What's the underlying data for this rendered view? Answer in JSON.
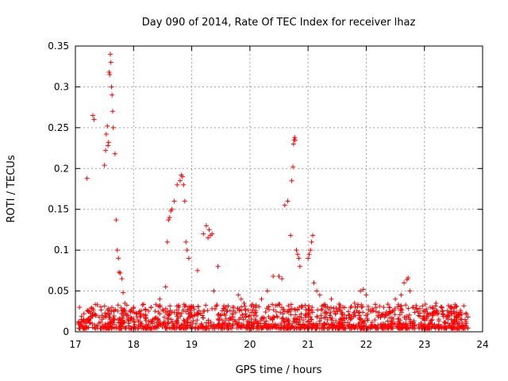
{
  "chart_data": {
    "type": "scatter",
    "title": "Day 090 of 2014, Rate Of TEC Index for receiver lhaz",
    "xlabel": "GPS time / hours",
    "ylabel": "ROTI / TECUs",
    "xlim": [
      17,
      24
    ],
    "ylim": [
      0,
      0.35
    ],
    "xticks": [
      17,
      18,
      19,
      20,
      21,
      22,
      23,
      24
    ],
    "xtick_labels": [
      "17",
      "18",
      "19",
      "20",
      "21",
      "22",
      "23",
      "24"
    ],
    "yticks": [
      0,
      0.05,
      0.1,
      0.15,
      0.2,
      0.25,
      0.3,
      0.35
    ],
    "ytick_labels": [
      "0",
      "0.05",
      "0.1",
      "0.15",
      "0.2",
      "0.25",
      "0.3",
      "0.35"
    ],
    "grid": true,
    "marker": "+",
    "color": "#ff0000",
    "series": [
      {
        "name": "ROTI",
        "x": [
          17.05,
          17.07,
          17.1,
          17.2,
          17.3,
          17.32,
          17.5,
          17.52,
          17.53,
          17.55,
          17.56,
          17.57,
          17.58,
          17.59,
          17.6,
          17.61,
          17.62,
          17.63,
          17.64,
          17.65,
          17.68,
          17.7,
          17.72,
          17.74,
          17.75,
          17.77,
          17.8,
          17.82,
          17.85,
          17.9,
          18.0,
          18.1,
          18.2,
          18.3,
          18.45,
          18.55,
          18.58,
          18.6,
          18.62,
          18.64,
          18.66,
          18.7,
          18.75,
          18.8,
          18.82,
          18.84,
          18.86,
          18.88,
          18.9,
          18.92,
          18.95,
          19.0,
          19.05,
          19.1,
          19.2,
          19.25,
          19.28,
          19.3,
          19.32,
          19.35,
          19.38,
          19.4,
          19.45,
          19.5,
          19.6,
          19.7,
          19.8,
          19.85,
          19.9,
          20.0,
          20.1,
          20.2,
          20.3,
          20.4,
          20.5,
          20.55,
          20.6,
          20.65,
          20.7,
          20.72,
          20.74,
          20.75,
          20.76,
          20.77,
          20.78,
          20.8,
          20.82,
          20.84,
          20.86,
          20.9,
          20.95,
          21.0,
          21.02,
          21.04,
          21.06,
          21.08,
          21.1,
          21.15,
          21.2,
          21.3,
          21.4,
          21.5,
          21.6,
          21.7,
          21.8,
          21.9,
          21.95,
          22.0,
          22.1,
          22.2,
          22.3,
          22.4,
          22.5,
          22.6,
          22.65,
          22.7,
          22.72,
          22.75,
          22.8,
          22.9,
          23.0,
          23.1,
          23.2,
          23.3,
          23.4,
          23.5,
          23.6,
          23.7,
          23.75
        ],
        "y": [
          0.012,
          0.03,
          0.015,
          0.188,
          0.265,
          0.26,
          0.204,
          0.222,
          0.242,
          0.252,
          0.228,
          0.232,
          0.318,
          0.315,
          0.34,
          0.33,
          0.3,
          0.29,
          0.27,
          0.25,
          0.218,
          0.137,
          0.1,
          0.09,
          0.073,
          0.072,
          0.065,
          0.048,
          0.035,
          0.02,
          0.03,
          0.025,
          0.02,
          0.03,
          0.04,
          0.055,
          0.11,
          0.137,
          0.14,
          0.148,
          0.15,
          0.16,
          0.18,
          0.185,
          0.192,
          0.19,
          0.18,
          0.16,
          0.11,
          0.1,
          0.09,
          0.03,
          0.02,
          0.075,
          0.12,
          0.13,
          0.115,
          0.125,
          0.118,
          0.12,
          0.05,
          0.028,
          0.08,
          0.02,
          0.025,
          0.03,
          0.045,
          0.04,
          0.035,
          0.02,
          0.03,
          0.04,
          0.05,
          0.068,
          0.068,
          0.065,
          0.155,
          0.16,
          0.118,
          0.185,
          0.202,
          0.23,
          0.235,
          0.238,
          0.235,
          0.1,
          0.095,
          0.09,
          0.08,
          0.03,
          0.02,
          0.09,
          0.095,
          0.1,
          0.11,
          0.118,
          0.06,
          0.05,
          0.045,
          0.03,
          0.04,
          0.025,
          0.03,
          0.02,
          0.035,
          0.05,
          0.052,
          0.045,
          0.025,
          0.02,
          0.03,
          0.025,
          0.04,
          0.045,
          0.06,
          0.064,
          0.066,
          0.05,
          0.03,
          0.02,
          0.025,
          0.03,
          0.035,
          0.03,
          0.02,
          0.025,
          0.02,
          0.015,
          0.018
        ]
      }
    ]
  }
}
